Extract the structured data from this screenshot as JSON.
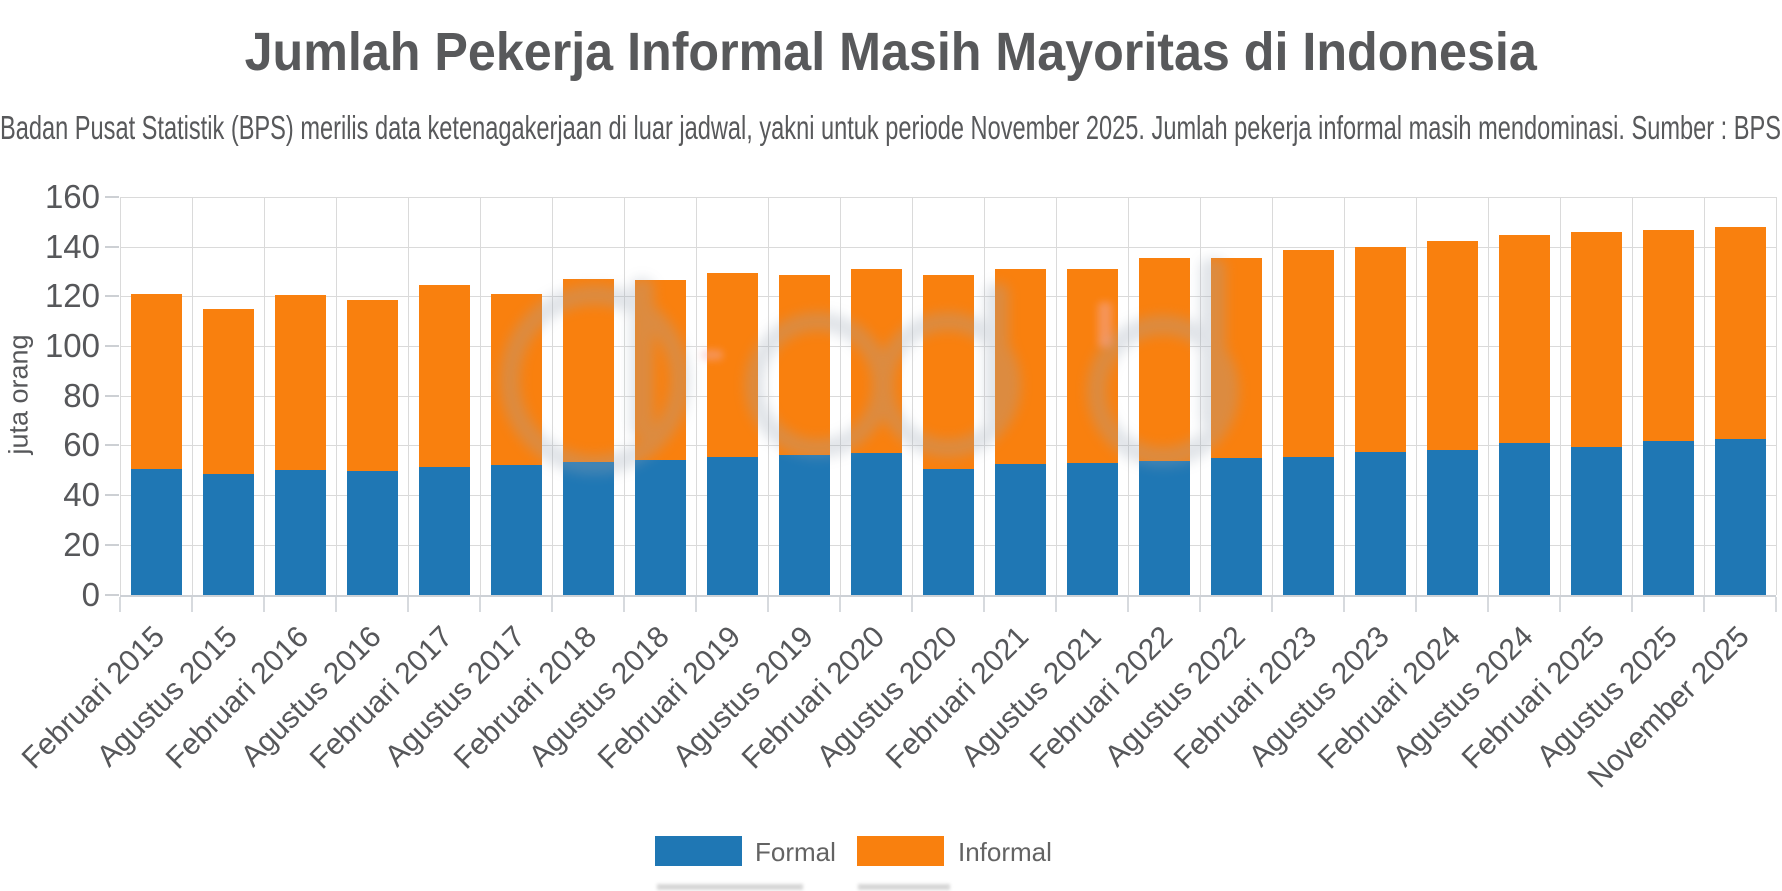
{
  "title": "Jumlah Pekerja Informal Masih Mayoritas di Indonesia",
  "subtitle": "Badan Pusat Statistik (BPS) merilis data ketenagakerjaan di luar jadwal, yakni untuk periode November 2025. Jumlah pekerja informal masih mendominasi. Sumber : BPS",
  "chart_data": {
    "type": "bar",
    "stacked": true,
    "title": "Jumlah Pekerja Informal Masih Mayoritas di Indonesia",
    "subtitle": "Badan Pusat Statistik (BPS) merilis data ketenagakerjaan di luar jadwal, yakni untuk periode November 2025. Jumlah pekerja informal masih mendominasi. Sumber : BPS",
    "ylabel": "juta orang",
    "ylim": [
      0,
      160
    ],
    "yticks": [
      0,
      20,
      40,
      60,
      80,
      100,
      120,
      140,
      160
    ],
    "grid": true,
    "legend_position": "bottom",
    "categories": [
      "Februari 2015",
      "Agustus 2015",
      "Februari 2016",
      "Agustus 2016",
      "Februari 2017",
      "Agustus 2017",
      "Februari 2018",
      "Agustus 2018",
      "Februari 2019",
      "Agustus 2019",
      "Februari 2020",
      "Agustus 2020",
      "Februari 2021",
      "Agustus 2021",
      "Februari 2022",
      "Agustus 2022",
      "Februari 2023",
      "Agustus 2023",
      "Februari 2024",
      "Agustus 2024",
      "Februari 2025",
      "Agustus 2025",
      "November 2025"
    ],
    "series": [
      {
        "name": "Formal",
        "color": "#1f77b4",
        "values": [
          50.7,
          48.5,
          50.0,
          49.7,
          51.5,
          52.0,
          53.4,
          54.0,
          55.3,
          56.0,
          57.0,
          50.5,
          52.5,
          53.0,
          53.8,
          54.9,
          55.3,
          57.2,
          58.0,
          60.8,
          59.2,
          61.7,
          62.5
        ]
      },
      {
        "name": "Informal",
        "color": "#f9800e",
        "values": [
          70.2,
          66.3,
          70.7,
          68.7,
          73.0,
          69.0,
          73.7,
          72.4,
          74.1,
          72.8,
          74.0,
          78.0,
          78.6,
          78.1,
          81.8,
          80.4,
          83.3,
          82.7,
          84.2,
          83.8,
          86.6,
          84.9,
          85.6
        ]
      }
    ]
  },
  "watermark": {
    "color": "#9aa5b3",
    "accent": "#f2aeb4"
  }
}
